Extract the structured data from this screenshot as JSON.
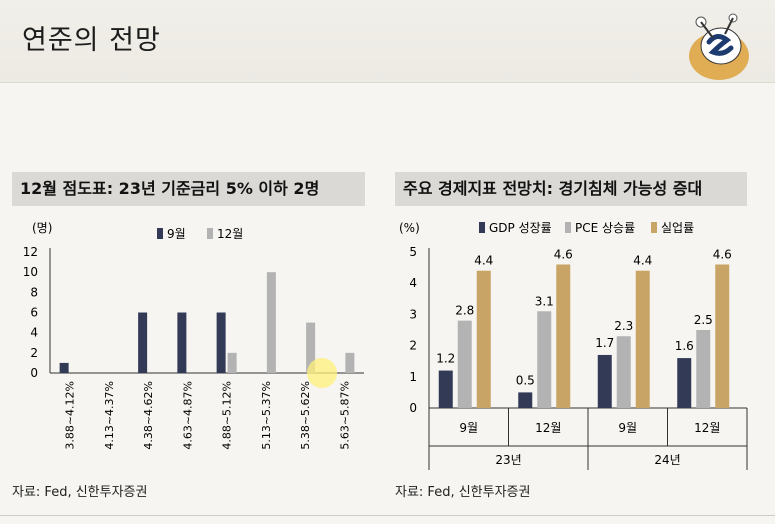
{
  "page": {
    "title": "연준의 전망",
    "left_panel_title": "12월 점도표: 23년 기준금리 5% 이하 2명",
    "right_panel_title": "주요 경제지표 전망치: 경기침체 가능성 증대",
    "left_source": "자료: Fed, 신한투자증권",
    "right_source": "자료: Fed, 신한투자증권"
  },
  "chart_data": [
    {
      "type": "bar",
      "ylabel": "(명)",
      "ylim": [
        0,
        12
      ],
      "yticks": [
        "0",
        "2",
        "4",
        "6",
        "8",
        "10",
        "12"
      ],
      "categories": [
        "3.88~4.12%",
        "4.13~4.37%",
        "4.38~4.62%",
        "4.63~4.87%",
        "4.88~5.12%",
        "5.13~5.37%",
        "5.38~5.62%",
        "5.63~5.87%"
      ],
      "series": [
        {
          "name": "9월",
          "color": "#333a56",
          "values": [
            1,
            0,
            6,
            6,
            6,
            0,
            0,
            0
          ]
        },
        {
          "name": "12월",
          "color": "#b3b3b3",
          "values": [
            0,
            0,
            0,
            0,
            2,
            10,
            5,
            2
          ]
        }
      ],
      "legend": "top",
      "grid": false
    },
    {
      "type": "bar",
      "ylabel": "(%)",
      "ylim": [
        0,
        5
      ],
      "yticks": [
        "0",
        "1",
        "2",
        "3",
        "4",
        "5"
      ],
      "categories": [
        "9월",
        "12월",
        "9월",
        "12월"
      ],
      "groups": [
        {
          "label": "23년",
          "span": 2
        },
        {
          "label": "24년",
          "span": 2
        }
      ],
      "series": [
        {
          "name": "GDP 성장률",
          "color": "#333a56",
          "values": [
            1.2,
            0.5,
            1.7,
            1.6
          ],
          "labels": [
            "1.2",
            "0.5",
            "1.7",
            "1.6"
          ]
        },
        {
          "name": "PCE 상승률",
          "color": "#b3b3b3",
          "values": [
            2.8,
            3.1,
            2.3,
            2.5
          ],
          "labels": [
            "2.8",
            "3.1",
            "2.3",
            "2.5"
          ]
        },
        {
          "name": "실업률",
          "color": "#c8a466",
          "values": [
            4.4,
            4.6,
            4.4,
            4.6
          ],
          "labels": [
            "4.4",
            "4.6",
            "4.4",
            "4.6"
          ]
        }
      ],
      "legend": "top",
      "grid": false
    }
  ]
}
